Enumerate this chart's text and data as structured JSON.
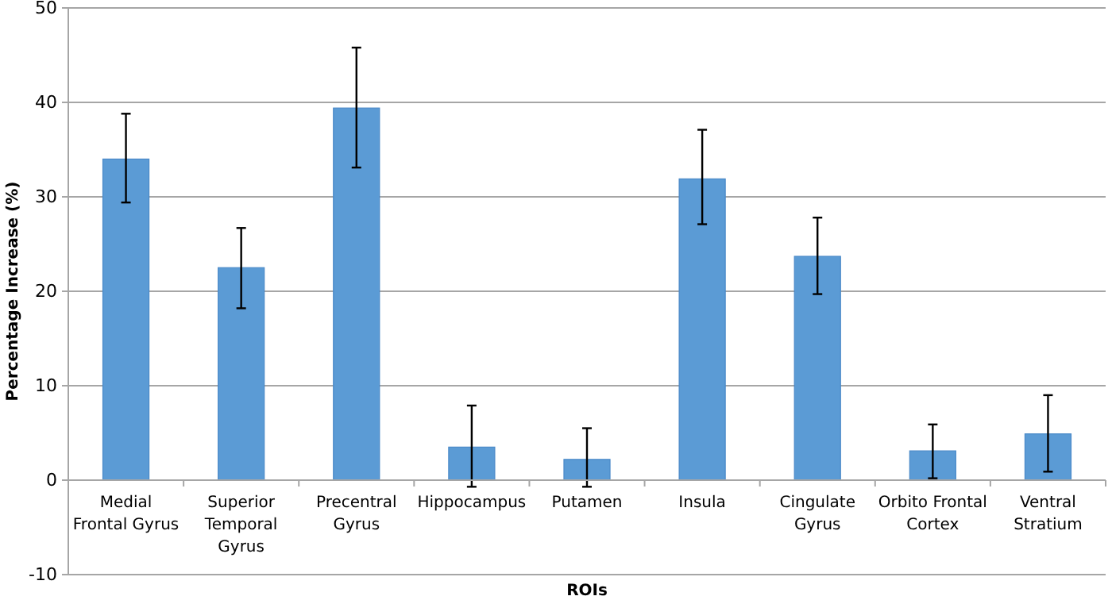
{
  "chart_data": {
    "type": "bar",
    "xlabel": "ROIs",
    "ylabel": "Percentage Increase (%)",
    "categories": [
      "Medial Frontal Gyrus",
      "Superior Temporal Gyrus",
      "Precentral Gyrus",
      "Hippocampus",
      "Putamen",
      "Insula",
      "Cingulate Gyrus",
      "Orbito Frontal Cortex",
      "Ventral Stratium"
    ],
    "values": [
      34.0,
      22.5,
      39.4,
      3.5,
      2.2,
      31.9,
      23.7,
      3.1,
      4.9
    ],
    "errors": [
      [
        29.4,
        38.8
      ],
      [
        18.2,
        26.7
      ],
      [
        33.1,
        45.8
      ],
      [
        -0.7,
        7.9
      ],
      [
        -0.7,
        5.5
      ],
      [
        27.1,
        37.1
      ],
      [
        19.7,
        27.8
      ],
      [
        0.2,
        5.9
      ],
      [
        0.9,
        9.0
      ]
    ],
    "color": "#5b9bd5",
    "ylim": [
      -10,
      50
    ],
    "yticks": [
      -10,
      0,
      10,
      20,
      30,
      40,
      50
    ],
    "grid": "y"
  }
}
